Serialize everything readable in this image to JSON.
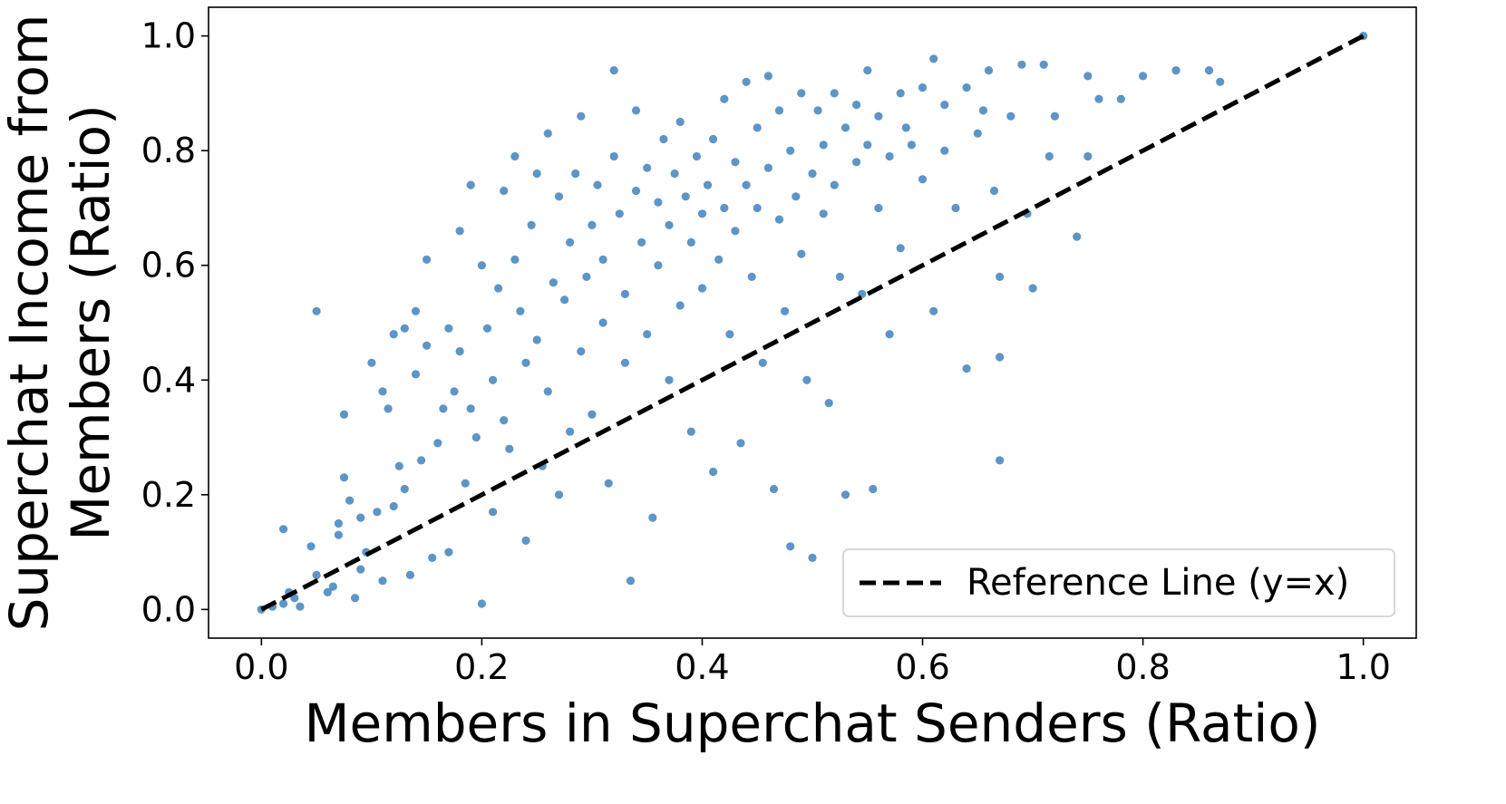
{
  "chart_data": {
    "type": "scatter",
    "title": "",
    "xlabel": "Members in Superchat Senders (Ratio)",
    "ylabel_lines": [
      "Superchat Income from",
      "Members (Ratio)"
    ],
    "xlim": [
      -0.048,
      1.048
    ],
    "ylim": [
      -0.05,
      1.05
    ],
    "xticks": [
      0.0,
      0.2,
      0.4,
      0.6,
      0.8,
      1.0
    ],
    "yticks": [
      0.0,
      0.2,
      0.4,
      0.6,
      0.8,
      1.0
    ],
    "xtick_labels": [
      "0.0",
      "0.2",
      "0.4",
      "0.6",
      "0.8",
      "1.0"
    ],
    "ytick_labels": [
      "0.0",
      "0.2",
      "0.4",
      "0.6",
      "0.8",
      "1.0"
    ],
    "grid": false,
    "point_color": "#4a89c0",
    "reference_line": {
      "label": "Reference Line (y=x)",
      "from": [
        0,
        0
      ],
      "to": [
        1,
        1
      ],
      "color": "#000000",
      "style": "dashed"
    },
    "legend_position": "lower-right",
    "point_count_approx": 1000,
    "series": [
      {
        "name": "",
        "points": [
          [
            0.0,
            0.0
          ],
          [
            0.01,
            0.005
          ],
          [
            0.02,
            0.01
          ],
          [
            0.025,
            0.03
          ],
          [
            0.03,
            0.02
          ],
          [
            0.035,
            0.005
          ],
          [
            0.02,
            0.14
          ],
          [
            0.045,
            0.11
          ],
          [
            0.05,
            0.06
          ],
          [
            0.05,
            0.52
          ],
          [
            0.06,
            0.03
          ],
          [
            0.065,
            0.04
          ],
          [
            0.07,
            0.15
          ],
          [
            0.07,
            0.13
          ],
          [
            0.075,
            0.23
          ],
          [
            0.075,
            0.34
          ],
          [
            0.08,
            0.19
          ],
          [
            0.085,
            0.02
          ],
          [
            0.09,
            0.16
          ],
          [
            0.09,
            0.07
          ],
          [
            0.095,
            0.1
          ],
          [
            0.1,
            0.43
          ],
          [
            0.105,
            0.17
          ],
          [
            0.11,
            0.05
          ],
          [
            0.11,
            0.38
          ],
          [
            0.115,
            0.35
          ],
          [
            0.12,
            0.48
          ],
          [
            0.12,
            0.18
          ],
          [
            0.125,
            0.25
          ],
          [
            0.13,
            0.49
          ],
          [
            0.13,
            0.21
          ],
          [
            0.135,
            0.06
          ],
          [
            0.14,
            0.41
          ],
          [
            0.14,
            0.52
          ],
          [
            0.145,
            0.26
          ],
          [
            0.15,
            0.61
          ],
          [
            0.15,
            0.46
          ],
          [
            0.155,
            0.09
          ],
          [
            0.16,
            0.29
          ],
          [
            0.165,
            0.35
          ],
          [
            0.17,
            0.49
          ],
          [
            0.17,
            0.1
          ],
          [
            0.175,
            0.38
          ],
          [
            0.18,
            0.66
          ],
          [
            0.18,
            0.45
          ],
          [
            0.185,
            0.22
          ],
          [
            0.19,
            0.74
          ],
          [
            0.19,
            0.35
          ],
          [
            0.195,
            0.3
          ],
          [
            0.2,
            0.01
          ],
          [
            0.2,
            0.6
          ],
          [
            0.205,
            0.49
          ],
          [
            0.21,
            0.17
          ],
          [
            0.21,
            0.4
          ],
          [
            0.215,
            0.56
          ],
          [
            0.22,
            0.73
          ],
          [
            0.22,
            0.33
          ],
          [
            0.225,
            0.28
          ],
          [
            0.23,
            0.79
          ],
          [
            0.23,
            0.61
          ],
          [
            0.235,
            0.52
          ],
          [
            0.24,
            0.43
          ],
          [
            0.24,
            0.12
          ],
          [
            0.245,
            0.67
          ],
          [
            0.25,
            0.47
          ],
          [
            0.25,
            0.76
          ],
          [
            0.255,
            0.25
          ],
          [
            0.26,
            0.83
          ],
          [
            0.26,
            0.38
          ],
          [
            0.265,
            0.57
          ],
          [
            0.27,
            0.72
          ],
          [
            0.27,
            0.2
          ],
          [
            0.275,
            0.54
          ],
          [
            0.28,
            0.64
          ],
          [
            0.28,
            0.31
          ],
          [
            0.285,
            0.76
          ],
          [
            0.29,
            0.86
          ],
          [
            0.29,
            0.45
          ],
          [
            0.295,
            0.58
          ],
          [
            0.3,
            0.67
          ],
          [
            0.3,
            0.34
          ],
          [
            0.305,
            0.74
          ],
          [
            0.31,
            0.5
          ],
          [
            0.31,
            0.61
          ],
          [
            0.315,
            0.22
          ],
          [
            0.32,
            0.94
          ],
          [
            0.32,
            0.79
          ],
          [
            0.325,
            0.69
          ],
          [
            0.33,
            0.55
          ],
          [
            0.33,
            0.43
          ],
          [
            0.335,
            0.05
          ],
          [
            0.34,
            0.87
          ],
          [
            0.34,
            0.73
          ],
          [
            0.345,
            0.64
          ],
          [
            0.35,
            0.48
          ],
          [
            0.35,
            0.77
          ],
          [
            0.355,
            0.16
          ],
          [
            0.36,
            0.71
          ],
          [
            0.36,
            0.6
          ],
          [
            0.365,
            0.82
          ],
          [
            0.37,
            0.4
          ],
          [
            0.37,
            0.67
          ],
          [
            0.375,
            0.76
          ],
          [
            0.38,
            0.85
          ],
          [
            0.38,
            0.53
          ],
          [
            0.385,
            0.72
          ],
          [
            0.39,
            0.64
          ],
          [
            0.39,
            0.31
          ],
          [
            0.395,
            0.79
          ],
          [
            0.4,
            0.69
          ],
          [
            0.4,
            0.56
          ],
          [
            0.405,
            0.74
          ],
          [
            0.41,
            0.82
          ],
          [
            0.41,
            0.24
          ],
          [
            0.415,
            0.61
          ],
          [
            0.42,
            0.89
          ],
          [
            0.42,
            0.7
          ],
          [
            0.425,
            0.48
          ],
          [
            0.43,
            0.78
          ],
          [
            0.43,
            0.66
          ],
          [
            0.435,
            0.29
          ],
          [
            0.44,
            0.92
          ],
          [
            0.44,
            0.74
          ],
          [
            0.445,
            0.58
          ],
          [
            0.45,
            0.84
          ],
          [
            0.45,
            0.7
          ],
          [
            0.455,
            0.43
          ],
          [
            0.46,
            0.93
          ],
          [
            0.46,
            0.77
          ],
          [
            0.465,
            0.21
          ],
          [
            0.47,
            0.87
          ],
          [
            0.47,
            0.68
          ],
          [
            0.475,
            0.52
          ],
          [
            0.48,
            0.8
          ],
          [
            0.48,
            0.11
          ],
          [
            0.485,
            0.72
          ],
          [
            0.49,
            0.9
          ],
          [
            0.49,
            0.62
          ],
          [
            0.495,
            0.4
          ],
          [
            0.5,
            0.76
          ],
          [
            0.5,
            0.09
          ],
          [
            0.505,
            0.87
          ],
          [
            0.51,
            0.81
          ],
          [
            0.51,
            0.69
          ],
          [
            0.515,
            0.36
          ],
          [
            0.52,
            0.9
          ],
          [
            0.52,
            0.74
          ],
          [
            0.525,
            0.58
          ],
          [
            0.53,
            0.84
          ],
          [
            0.53,
            0.2
          ],
          [
            0.54,
            0.88
          ],
          [
            0.54,
            0.78
          ],
          [
            0.545,
            0.55
          ],
          [
            0.55,
            0.94
          ],
          [
            0.55,
            0.81
          ],
          [
            0.555,
            0.21
          ],
          [
            0.56,
            0.86
          ],
          [
            0.56,
            0.7
          ],
          [
            0.57,
            0.79
          ],
          [
            0.57,
            0.48
          ],
          [
            0.58,
            0.9
          ],
          [
            0.58,
            0.63
          ],
          [
            0.585,
            0.84
          ],
          [
            0.59,
            0.81
          ],
          [
            0.6,
            0.91
          ],
          [
            0.6,
            0.75
          ],
          [
            0.61,
            0.96
          ],
          [
            0.61,
            0.52
          ],
          [
            0.62,
            0.88
          ],
          [
            0.62,
            0.8
          ],
          [
            0.63,
            0.7
          ],
          [
            0.64,
            0.91
          ],
          [
            0.64,
            0.42
          ],
          [
            0.65,
            0.83
          ],
          [
            0.655,
            0.87
          ],
          [
            0.66,
            0.94
          ],
          [
            0.665,
            0.73
          ],
          [
            0.67,
            0.58
          ],
          [
            0.67,
            0.44
          ],
          [
            0.67,
            0.26
          ],
          [
            0.68,
            0.86
          ],
          [
            0.69,
            0.95
          ],
          [
            0.695,
            0.69
          ],
          [
            0.7,
            0.56
          ],
          [
            0.71,
            0.95
          ],
          [
            0.715,
            0.79
          ],
          [
            0.72,
            0.86
          ],
          [
            0.74,
            0.65
          ],
          [
            0.75,
            0.93
          ],
          [
            0.75,
            0.79
          ],
          [
            0.76,
            0.89
          ],
          [
            0.78,
            0.89
          ],
          [
            0.8,
            0.93
          ],
          [
            0.83,
            0.94
          ],
          [
            0.86,
            0.94
          ],
          [
            0.87,
            0.92
          ],
          [
            1.0,
            1.0
          ]
        ]
      }
    ]
  }
}
